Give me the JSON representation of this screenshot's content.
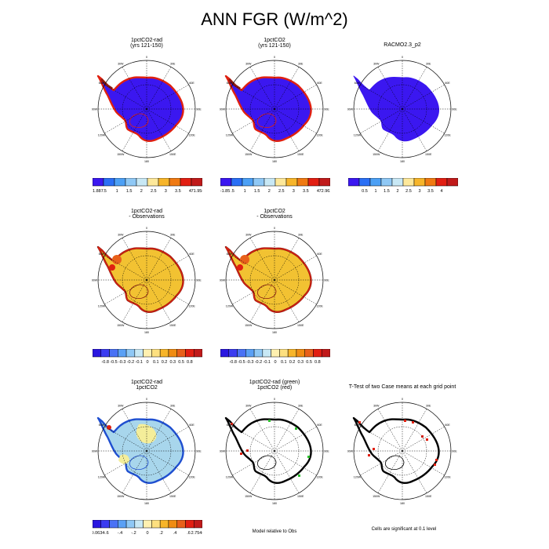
{
  "title": "ANN FGR (W/m^2)",
  "lon_labels": [
    "0",
    "30E",
    "60E",
    "90E",
    "120E",
    "150E",
    "180",
    "150W",
    "120W",
    "90W",
    "60W",
    "30W"
  ],
  "panels": [
    {
      "id": "p1",
      "title1": "1pctCO2-rad",
      "title2": "(yrs 121-150)",
      "fill": "#3b17f0",
      "coast": "#e02010",
      "variant": "model"
    },
    {
      "id": "p2",
      "title1": "1pctCO2",
      "title2": "(yrs 121-150)",
      "fill": "#3b17f0",
      "coast": "#e02010",
      "variant": "model"
    },
    {
      "id": "p3",
      "title1": "RACMO2.3_p2",
      "title2": "",
      "fill": "#3b17f0",
      "coast": "#3b17f0",
      "variant": "obs"
    },
    {
      "id": "p4",
      "title1": "1pctCO2-rad",
      "title2": "- Observations",
      "fill": "#f2c232",
      "coast": "#8b1a10",
      "variant": "diff"
    },
    {
      "id": "p5",
      "title1": "1pctCO2",
      "title2": "- Observations",
      "fill": "#f2c232",
      "coast": "#8b1a10",
      "variant": "diff"
    },
    {
      "id": "p6",
      "title1": "1pctCO2-rad",
      "title2": "1pctCO2",
      "fill": "#a8d6ec",
      "coast": "#1f4fd0",
      "variant": "case"
    },
    {
      "id": "p7",
      "title1": "1pctCO2-rad (green)",
      "title2": "1pctCO2 (red)",
      "fill": "#ffffff",
      "coast": "#000000",
      "variant": "relobs"
    },
    {
      "id": "p8",
      "title1": "T-Test of two Case means at each grid point",
      "title2": "",
      "fill": "#ffffff",
      "coast": "#000000",
      "variant": "ttest"
    }
  ],
  "labelbars": [
    {
      "id": "lb1",
      "colors": [
        "#3b17f0",
        "#2a6ff5",
        "#4ca0f5",
        "#8fc8f5",
        "#c8e8f5",
        "#fde89a",
        "#f7b52a",
        "#f07a12",
        "#e21f12",
        "#c01a1a"
      ],
      "labels": [
        "-1.887",
        ".5",
        "1",
        "1.5",
        "2",
        "2.5",
        "3",
        "3.5",
        "4",
        "71.954"
      ],
      "ends": true
    },
    {
      "id": "lb2",
      "colors": [
        "#3b17f0",
        "#2a6ff5",
        "#4ca0f5",
        "#8fc8f5",
        "#c8e8f5",
        "#fde89a",
        "#f7b52a",
        "#f07a12",
        "#e21f12",
        "#c01a1a"
      ],
      "labels": [
        "-1.85",
        ".5",
        "1",
        "1.5",
        "2",
        "2.5",
        "3",
        "3.5",
        "4",
        "72.962"
      ],
      "ends": true
    },
    {
      "id": "lb3",
      "colors": [
        "#3b17f0",
        "#2a6ff5",
        "#4ca0f5",
        "#8fc8f5",
        "#c8e8f5",
        "#fde89a",
        "#f7b52a",
        "#f07a12",
        "#e21f12",
        "#c01a1a"
      ],
      "labels": [
        "0.5",
        "1",
        "1.5",
        "2",
        "2.5",
        "3",
        "3.5",
        "4"
      ],
      "ends": false
    },
    {
      "id": "lb4",
      "colors": [
        "#2a17e0",
        "#3b3cf0",
        "#4a72f5",
        "#5aa0f5",
        "#8fc8f5",
        "#c8e8f5",
        "#fff0b0",
        "#fde080",
        "#f7b52a",
        "#f08c12",
        "#e8601a",
        "#e21f12",
        "#c01a1a"
      ],
      "labels": [
        "-0.8",
        "-0.5",
        "-0.3",
        "-0.2",
        "-0.1",
        "0",
        "0.1",
        "0.2",
        "0.3",
        "0.5",
        "0.8"
      ],
      "ends": false
    },
    {
      "id": "lb5",
      "colors": [
        "#2a17e0",
        "#3b3cf0",
        "#4a72f5",
        "#5aa0f5",
        "#8fc8f5",
        "#c8e8f5",
        "#fff0b0",
        "#fde080",
        "#f7b52a",
        "#f08c12",
        "#e8601a",
        "#e21f12",
        "#c01a1a"
      ],
      "labels": [
        "-0.8",
        "-0.5",
        "-0.3",
        "-0.2",
        "-0.1",
        "0",
        "0.1",
        "0.2",
        "0.3",
        "0.5",
        "0.8"
      ],
      "ends": false
    },
    {
      "id": "lb6",
      "colors": [
        "#2a17e0",
        "#3b3cf0",
        "#4a72f5",
        "#5aa0f5",
        "#8fc8f5",
        "#c8e8f5",
        "#fff0b0",
        "#fde080",
        "#f7b52a",
        "#f08c12",
        "#e8601a",
        "#e21f12",
        "#c01a1a"
      ],
      "labels": [
        "-9.0634",
        "-.6",
        "-.4",
        "-.2",
        "0",
        ".2",
        ".4",
        ".6",
        "2.7544"
      ],
      "ends": true
    }
  ],
  "notes": {
    "relobs": "Model relative to Obs",
    "ttest": "Cells are significant at 0.1 level"
  }
}
